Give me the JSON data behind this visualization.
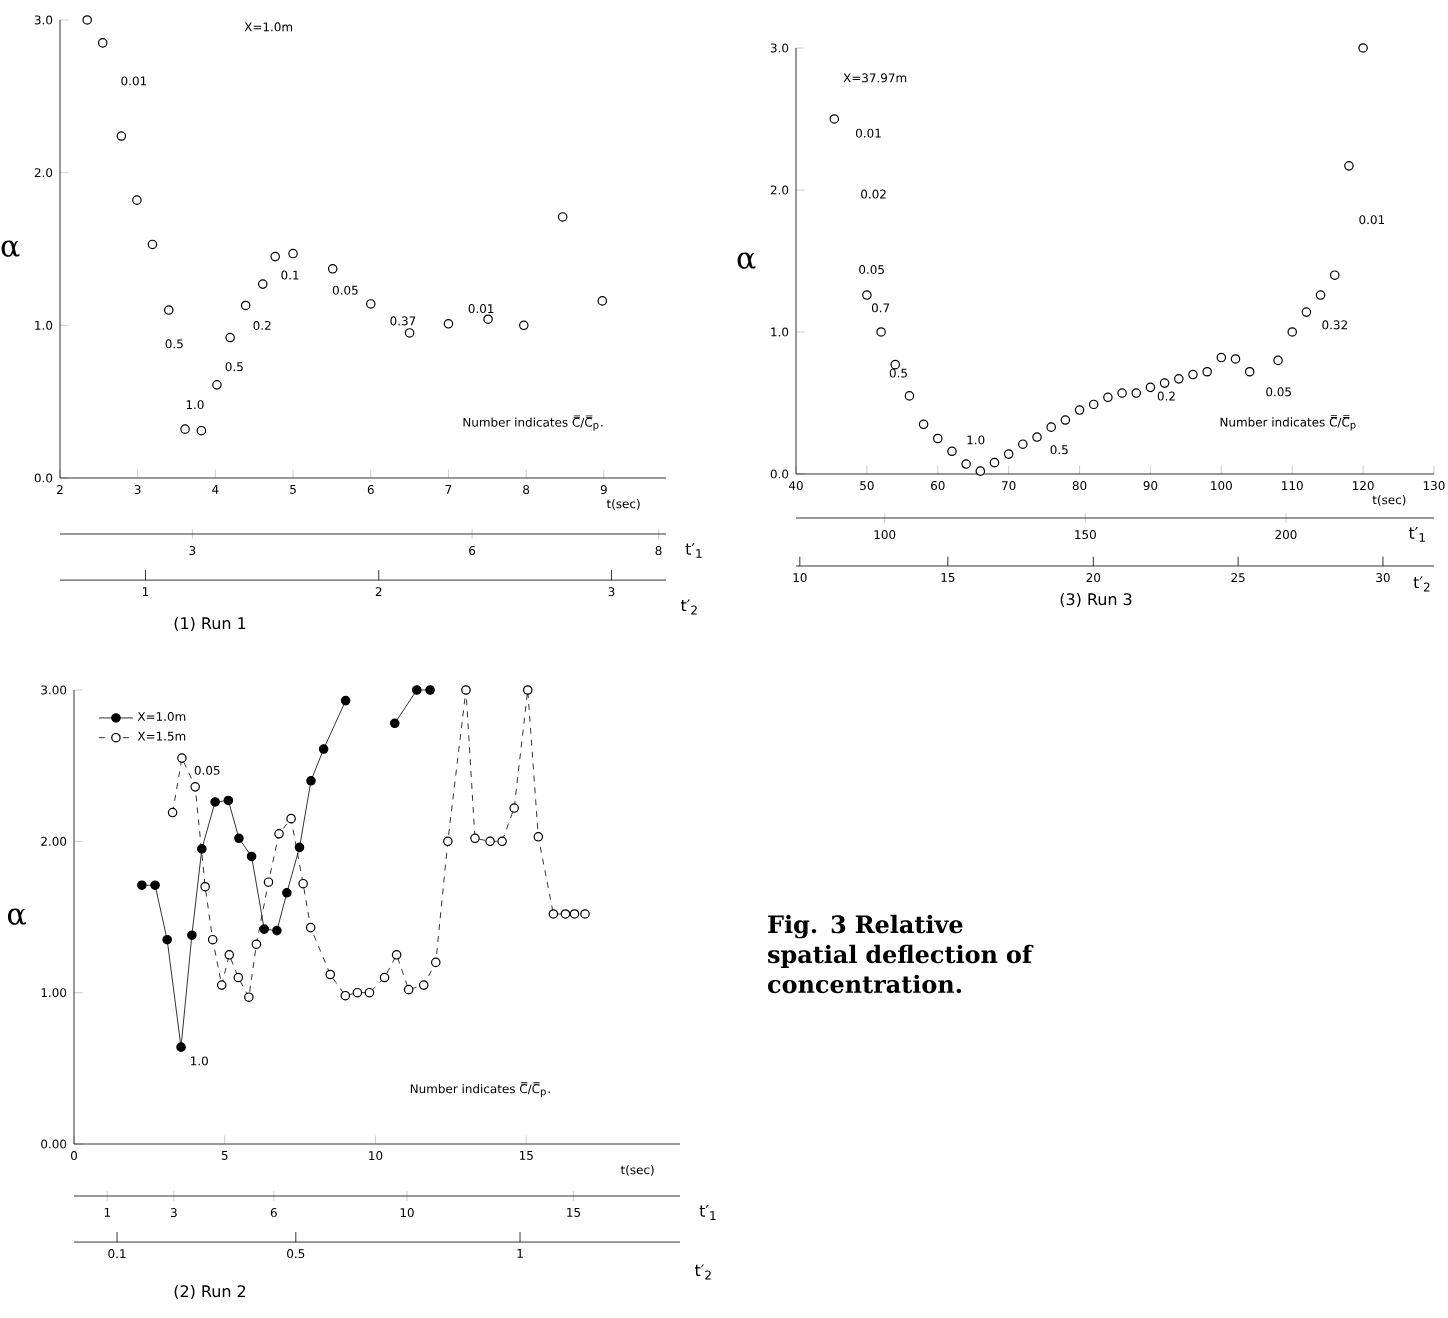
{
  "chart_data": [
    {
      "type": "scatter",
      "title": "(1) Run 1",
      "xlabel": "t(sec)",
      "ylabel": "α",
      "x2label": "t′$_{1}$",
      "xlim": [
        2,
        9.8
      ],
      "xticks": [
        2,
        3,
        4,
        5,
        6,
        7,
        8,
        9
      ],
      "ylim": [
        0,
        3
      ],
      "yticks": [
        {
          "value": 0,
          "label": "0.0"
        },
        {
          "value": 1,
          "label": "1.0"
        },
        {
          "value": 2,
          "label": "2.0"
        },
        {
          "value": 3,
          "label": "3.0"
        }
      ],
      "x2lim": [
        1.58,
        8.08
      ],
      "x2ticks": [
        3,
        6,
        8
      ],
      "marker": "circle",
      "color": "#000000",
      "x": [
        2.35,
        2.55,
        2.79,
        2.99,
        3.19,
        3.4,
        3.61,
        3.82,
        4.02,
        4.19,
        4.39,
        4.61,
        4.77,
        5.0,
        5.51,
        6.0,
        6.5,
        7.0,
        7.51,
        7.97,
        8.47,
        8.98
      ],
      "values": [
        3.0,
        2.85,
        2.24,
        1.82,
        1.53,
        1.1,
        0.32,
        0.31,
        0.61,
        0.92,
        1.13,
        1.27,
        1.45,
        1.47,
        1.37,
        1.14,
        0.95,
        1.01,
        1.04,
        1.0,
        1.71,
        1.16
      ],
      "annotations": [
        "X=1.0m",
        "Number indicates C̿/C̿$_{p}$.",
        "0.01",
        "0.5",
        "1.0",
        "0.5",
        "0.2",
        "0.1",
        "0.05",
        "0.37",
        "0.01",
        "1",
        "2",
        "3",
        "t′$_{2}$"
      ]
    },
    {
      "type": "scatter",
      "title": "(3) Run 3",
      "xlabel": "t(sec)",
      "ylabel": "α",
      "x2label": "t′$_{1}$",
      "xlim": [
        40,
        130
      ],
      "xticks": [
        40,
        50,
        60,
        70,
        80,
        90,
        100,
        110,
        120,
        130
      ],
      "ylim": [
        0,
        3
      ],
      "yticks": [
        {
          "value": 0,
          "label": "0.0"
        },
        {
          "value": 1,
          "label": "1.0"
        },
        {
          "value": 2,
          "label": "2.0"
        },
        {
          "value": 3,
          "label": "3.0"
        }
      ],
      "x2lim": [
        77.9,
        236.9
      ],
      "x2ticks": [
        100,
        150,
        200
      ],
      "marker": "circle",
      "color": "#000000",
      "x": [
        45.4,
        50,
        52,
        54,
        56,
        58,
        60,
        62,
        64,
        66,
        68,
        70,
        72,
        74,
        76,
        78,
        80,
        82,
        84,
        86,
        88,
        90,
        92,
        94,
        96,
        98,
        100,
        102,
        104,
        108,
        110,
        112,
        114,
        116,
        118,
        120
      ],
      "values": [
        2.5,
        1.26,
        1.0,
        0.77,
        0.55,
        0.35,
        0.25,
        0.16,
        0.07,
        0.02,
        0.08,
        0.14,
        0.21,
        0.26,
        0.33,
        0.38,
        0.45,
        0.49,
        0.54,
        0.57,
        0.57,
        0.61,
        0.64,
        0.67,
        0.7,
        0.72,
        0.82,
        0.81,
        0.72,
        0.8,
        1.0,
        1.14,
        1.26,
        1.4,
        2.17,
        3.0
      ],
      "annotations": [
        "X=37.97m",
        "Number indicates C̿/C̿$_{p}$",
        "0.01",
        "0.02",
        "0.05",
        "0.7",
        "0.5",
        "1.0",
        "0.5",
        "0.2",
        "0.05",
        "0.32",
        "0.01",
        "10",
        "15",
        "20",
        "25",
        "30",
        "t′$_{2}$"
      ]
    },
    {
      "type": "line",
      "title": "(2) Run 2",
      "xlabel": "t(sec)",
      "ylabel": "α",
      "x2label": "t′$_{1}$",
      "xlim": [
        0,
        20.1
      ],
      "xticks": [
        0,
        5,
        10,
        15
      ],
      "ylim": [
        0,
        3
      ],
      "yticks": [
        {
          "value": 0,
          "label": "0.00"
        },
        {
          "value": 1,
          "label": "1.00"
        },
        {
          "value": 2,
          "label": "2.00"
        },
        {
          "value": 3,
          "label": "3.00"
        }
      ],
      "x2lim": [
        0.0,
        18.2
      ],
      "x2ticks": [
        1,
        3,
        6,
        10,
        15
      ],
      "marker": "circle",
      "legend": "top left",
      "series": [
        {
          "name": "X=1.0m",
          "color": "#000000",
          "line_style": "solid",
          "x": [
            2.25,
            2.69,
            3.09,
            3.55,
            3.91,
            4.24,
            4.68,
            5.12,
            5.47,
            5.89,
            6.31,
            6.73,
            7.06,
            7.48,
            7.86,
            8.28,
            9.01,
            9.8,
            10.64,
            11.37,
            11.81
          ],
          "values": [
            1.71,
            1.71,
            1.35,
            0.64,
            1.38,
            1.95,
            2.26,
            2.27,
            2.02,
            1.9,
            1.42,
            1.41,
            1.66,
            1.96,
            2.4,
            2.61,
            2.93,
            null,
            2.78,
            3.0,
            3.0
          ]
        },
        {
          "name": "X=1.5m",
          "color": "#000000",
          "line_style": "dashed",
          "x": [
            3.27,
            3.58,
            4.02,
            4.35,
            4.6,
            4.9,
            5.15,
            5.45,
            5.8,
            6.05,
            6.45,
            6.8,
            7.2,
            7.6,
            7.85,
            8.5,
            9.0,
            9.4,
            9.8,
            10.3,
            10.7,
            11.1,
            11.6,
            12.0,
            12.4,
            13.0,
            13.3,
            13.8,
            14.2,
            14.6,
            15.05,
            15.4,
            15.9,
            16.3,
            16.6,
            16.95
          ],
          "values": [
            2.19,
            2.55,
            2.36,
            1.7,
            1.35,
            1.05,
            1.25,
            1.1,
            0.97,
            1.32,
            1.73,
            2.05,
            2.15,
            1.72,
            1.43,
            1.12,
            0.98,
            1.0,
            1.0,
            1.1,
            1.25,
            1.02,
            1.05,
            1.2,
            2.0,
            3.0,
            2.02,
            2.0,
            2.0,
            2.22,
            3.0,
            2.03,
            1.52,
            1.52,
            1.52,
            1.52
          ]
        }
      ],
      "annotations": [
        "Number indicates C̿/C̿$_{p}$.",
        "0.05",
        "1.0",
        "0.1",
        "0.5",
        "1",
        "t′$_{2}$"
      ]
    },
    {
      "type": "other",
      "title": "Fig. 3 Relative spatial deflection of concentration."
    }
  ]
}
